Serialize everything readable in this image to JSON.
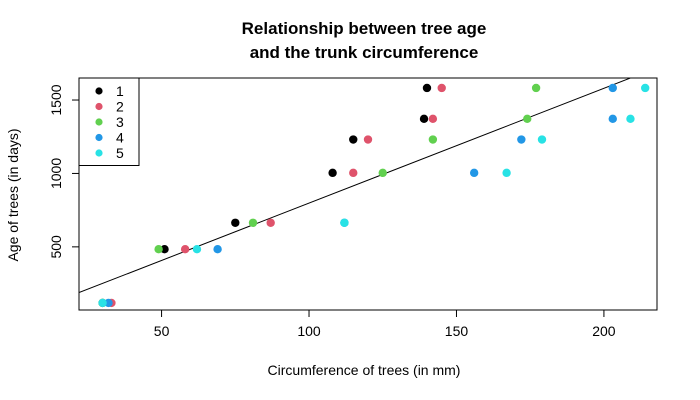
{
  "chart_data": {
    "type": "scatter",
    "title_line1": "Relationship between tree age",
    "title_line2": "and the trunk circumference",
    "xlabel": "Circumference of trees (in mm)",
    "ylabel": "Age of trees (in days)",
    "xlim": [
      22,
      218
    ],
    "ylim": [
      70,
      1650
    ],
    "x_ticks": [
      50,
      100,
      150,
      200
    ],
    "y_ticks": [
      500,
      1000,
      1500
    ],
    "grid": false,
    "legend_position": "top-left",
    "fit_line": {
      "slope": 7.816,
      "intercept": 16.6,
      "color": "#000000"
    },
    "series": [
      {
        "name": "1",
        "color": "#000000",
        "x": [
          30,
          51,
          75,
          108,
          115,
          139,
          140
        ],
        "y": [
          118,
          484,
          664,
          1004,
          1231,
          1372,
          1582
        ]
      },
      {
        "name": "2",
        "color": "#DF536B",
        "x": [
          33,
          58,
          87,
          115,
          120,
          142,
          145
        ],
        "y": [
          118,
          484,
          664,
          1004,
          1231,
          1372,
          1582
        ]
      },
      {
        "name": "3",
        "color": "#61D04F",
        "x": [
          30,
          49,
          81,
          125,
          142,
          174,
          177
        ],
        "y": [
          118,
          484,
          664,
          1004,
          1231,
          1372,
          1582
        ]
      },
      {
        "name": "4",
        "color": "#2297E6",
        "x": [
          32,
          69,
          112,
          156,
          172,
          203,
          203
        ],
        "y": [
          118,
          484,
          664,
          1004,
          1231,
          1372,
          1582
        ]
      },
      {
        "name": "5",
        "color": "#28E2E5",
        "x": [
          30,
          62,
          112,
          167,
          179,
          209,
          214
        ],
        "y": [
          118,
          484,
          664,
          1004,
          1231,
          1372,
          1582
        ]
      }
    ]
  }
}
